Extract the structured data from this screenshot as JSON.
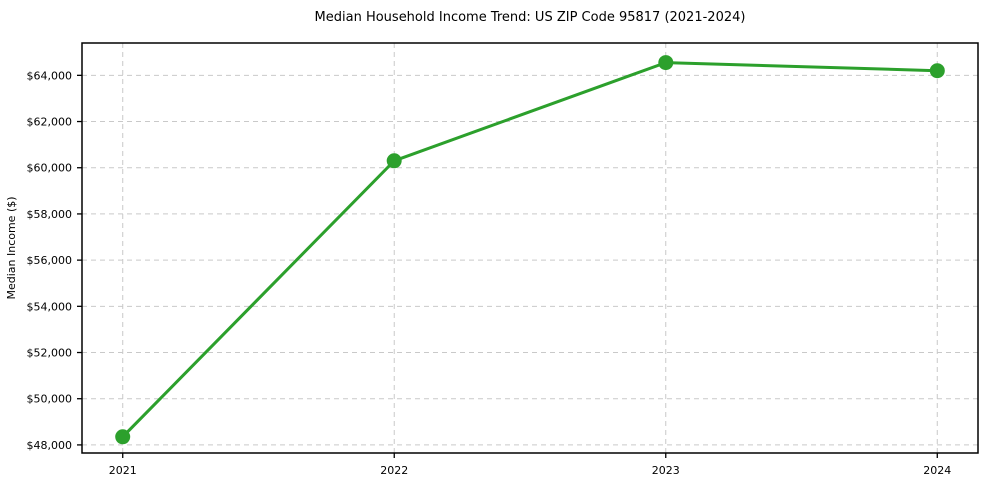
{
  "chart_data": {
    "type": "line",
    "title": "Median Household Income Trend: US ZIP Code 95817 (2021-2024)",
    "xlabel": "",
    "ylabel": "Median Income ($)",
    "x": [
      2021,
      2022,
      2023,
      2024
    ],
    "x_tick_labels": [
      "2021",
      "2022",
      "2023",
      "2024"
    ],
    "series": [
      {
        "name": "Median Income",
        "values": [
          48350,
          60300,
          64550,
          64200
        ],
        "color": "#2ca02c",
        "marker": "circle"
      }
    ],
    "y_ticks": [
      48000,
      50000,
      52000,
      54000,
      56000,
      58000,
      60000,
      62000,
      64000
    ],
    "y_tick_labels": [
      "$48,000",
      "$50,000",
      "$52,000",
      "$54,000",
      "$56,000",
      "$58,000",
      "$60,000",
      "$62,000",
      "$64,000"
    ],
    "ylim": [
      47650,
      65400
    ],
    "xlim": [
      2020.85,
      2024.15
    ],
    "grid": true,
    "grid_style": "dashed",
    "grid_color": "#c9c9c9",
    "background": "#ffffff",
    "axes_color": "#000000",
    "legend": "none"
  }
}
